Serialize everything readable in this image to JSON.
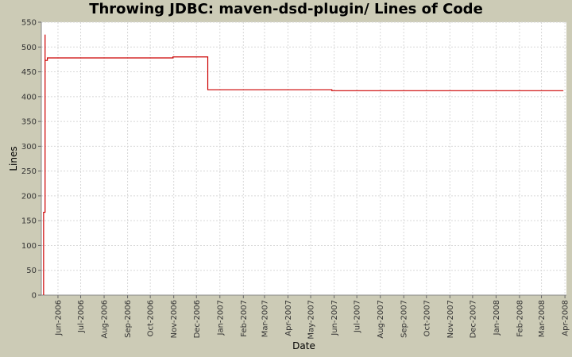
{
  "chart_data": {
    "type": "line",
    "title": "Throwing JDBC: maven-dsd-plugin/ Lines of Code",
    "xlabel": "Date",
    "ylabel": "Lines",
    "ylim": [
      0,
      550
    ],
    "yticks": [
      0,
      50,
      100,
      150,
      200,
      250,
      300,
      350,
      400,
      450,
      500,
      550
    ],
    "xlim": [
      "2006-05-10",
      "2008-04-03"
    ],
    "xticks": [
      {
        "date": "2006-06-01",
        "label": "Jun-2006"
      },
      {
        "date": "2006-07-01",
        "label": "Jul-2006"
      },
      {
        "date": "2006-08-01",
        "label": "Aug-2006"
      },
      {
        "date": "2006-09-01",
        "label": "Sep-2006"
      },
      {
        "date": "2006-10-01",
        "label": "Oct-2006"
      },
      {
        "date": "2006-11-01",
        "label": "Nov-2006"
      },
      {
        "date": "2006-12-01",
        "label": "Dec-2006"
      },
      {
        "date": "2007-01-01",
        "label": "Jan-2007"
      },
      {
        "date": "2007-02-01",
        "label": "Feb-2007"
      },
      {
        "date": "2007-03-01",
        "label": "Mar-2007"
      },
      {
        "date": "2007-04-01",
        "label": "Apr-2007"
      },
      {
        "date": "2007-05-01",
        "label": "May-2007"
      },
      {
        "date": "2007-06-01",
        "label": "Jun-2007"
      },
      {
        "date": "2007-07-01",
        "label": "Jul-2007"
      },
      {
        "date": "2007-08-01",
        "label": "Aug-2007"
      },
      {
        "date": "2007-09-01",
        "label": "Sep-2007"
      },
      {
        "date": "2007-10-01",
        "label": "Oct-2007"
      },
      {
        "date": "2007-11-01",
        "label": "Nov-2007"
      },
      {
        "date": "2007-12-01",
        "label": "Dec-2007"
      },
      {
        "date": "2008-01-01",
        "label": "Jan-2008"
      },
      {
        "date": "2008-02-01",
        "label": "Feb-2008"
      },
      {
        "date": "2008-03-01",
        "label": "Mar-2008"
      },
      {
        "date": "2008-04-01",
        "label": "Apr-2008"
      }
    ],
    "grid": true,
    "series": [
      {
        "color": "#cc0000",
        "step": true,
        "points": [
          {
            "x": "2006-05-13",
            "y": 0
          },
          {
            "x": "2006-05-13",
            "y": 167
          },
          {
            "x": "2006-05-15",
            "y": 167
          },
          {
            "x": "2006-05-15",
            "y": 525
          },
          {
            "x": "2006-05-15",
            "y": 473
          },
          {
            "x": "2006-05-18",
            "y": 473
          },
          {
            "x": "2006-05-18",
            "y": 478
          },
          {
            "x": "2006-10-31",
            "y": 478
          },
          {
            "x": "2006-10-31",
            "y": 480
          },
          {
            "x": "2006-12-16",
            "y": 480
          },
          {
            "x": "2006-12-16",
            "y": 414
          },
          {
            "x": "2007-05-15",
            "y": 414
          },
          {
            "x": "2007-05-29",
            "y": 414
          },
          {
            "x": "2007-05-29",
            "y": 412
          },
          {
            "x": "2008-03-30",
            "y": 412
          }
        ]
      }
    ]
  }
}
